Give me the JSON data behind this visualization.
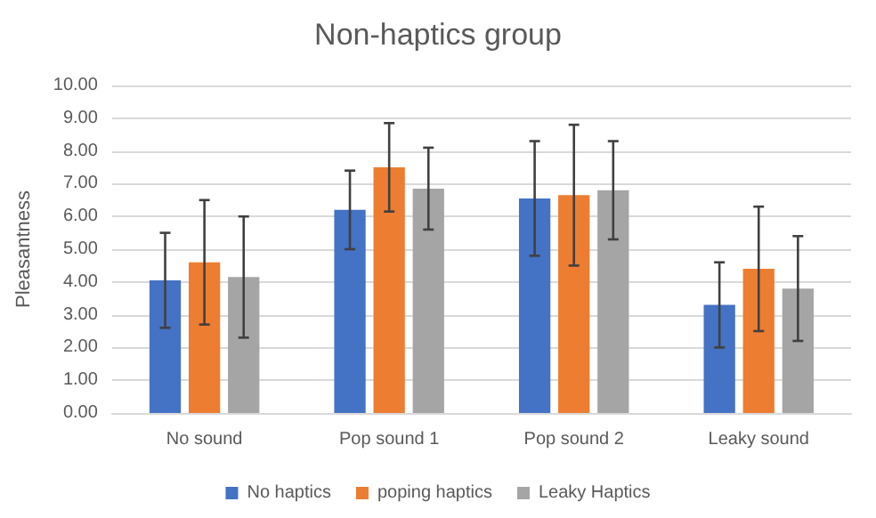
{
  "chart_data": {
    "type": "bar",
    "title": "Non-haptics group",
    "ylabel": "Pleasantness",
    "categories": [
      "No sound",
      "Pop sound 1",
      "Pop sound 2",
      "Leaky sound"
    ],
    "series": [
      {
        "name": "No haptics",
        "color": "#4472c4",
        "values": [
          4.05,
          6.2,
          6.55,
          3.3
        ],
        "errors": [
          1.45,
          1.2,
          1.75,
          1.3
        ]
      },
      {
        "name": "poping haptics",
        "color": "#ed7d31",
        "values": [
          4.6,
          7.5,
          6.65,
          4.4
        ],
        "errors": [
          1.9,
          1.35,
          2.15,
          1.9
        ]
      },
      {
        "name": "Leaky Haptics",
        "color": "#a5a5a5",
        "values": [
          4.15,
          6.85,
          6.8,
          3.8
        ],
        "errors": [
          1.85,
          1.25,
          1.5,
          1.6
        ]
      }
    ],
    "ylim": [
      0,
      10
    ],
    "yticks": [
      {
        "value": 0,
        "label": "0.00"
      },
      {
        "value": 1,
        "label": "1.00"
      },
      {
        "value": 2,
        "label": "2.00"
      },
      {
        "value": 3,
        "label": "3.00"
      },
      {
        "value": 4,
        "label": "4.00"
      },
      {
        "value": 5,
        "label": "5.00"
      },
      {
        "value": 6,
        "label": "6.00"
      },
      {
        "value": 7,
        "label": "7.00"
      },
      {
        "value": 8,
        "label": "8.00"
      },
      {
        "value": 9,
        "label": "9.00"
      },
      {
        "value": 10,
        "label": "10.00"
      }
    ],
    "grid": "y",
    "legend": "bottom"
  }
}
